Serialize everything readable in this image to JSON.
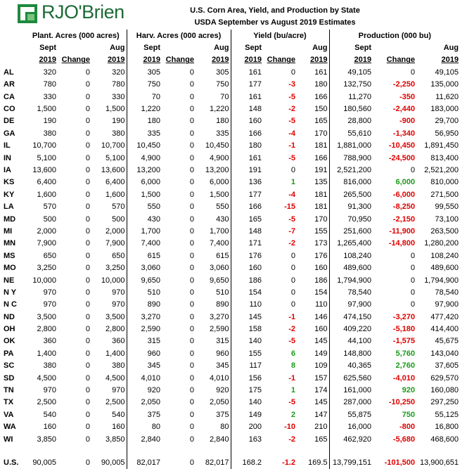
{
  "logo": {
    "text": "RJO'Brien"
  },
  "titles": {
    "line1": "U.S. Corn Area, Yield, and Production by State",
    "line2": "USDA September vs August 2019 Estimates"
  },
  "groups": {
    "plant": "Plant. Acres (000 acres)",
    "harv": "Harv. Acres (000 acres)",
    "yield": "Yield (bu/acre)",
    "prod": "Production (000 bu)"
  },
  "hdr": {
    "sept": "Sept",
    "aug": "Aug",
    "year": "2019",
    "change": "Change"
  },
  "colors": {
    "negative": "#e00000",
    "positive": "#1a9a1a",
    "logo": "#1d8a3c"
  },
  "rows": [
    [
      "AL",
      "320",
      "0",
      "320",
      "305",
      "0",
      "305",
      "161",
      "0",
      "161",
      "49,105",
      "0",
      "49,105"
    ],
    [
      "AR",
      "780",
      "0",
      "780",
      "750",
      "0",
      "750",
      "177",
      "-3",
      "180",
      "132,750",
      "-2,250",
      "135,000"
    ],
    [
      "CA",
      "330",
      "0",
      "330",
      "70",
      "0",
      "70",
      "161",
      "-5",
      "166",
      "11,270",
      "-350",
      "11,620"
    ],
    [
      "CO",
      "1,500",
      "0",
      "1,500",
      "1,220",
      "0",
      "1,220",
      "148",
      "-2",
      "150",
      "180,560",
      "-2,440",
      "183,000"
    ],
    [
      "DE",
      "190",
      "0",
      "190",
      "180",
      "0",
      "180",
      "160",
      "-5",
      "165",
      "28,800",
      "-900",
      "29,700"
    ],
    [
      "GA",
      "380",
      "0",
      "380",
      "335",
      "0",
      "335",
      "166",
      "-4",
      "170",
      "55,610",
      "-1,340",
      "56,950"
    ],
    [
      "IL",
      "10,700",
      "0",
      "10,700",
      "10,450",
      "0",
      "10,450",
      "180",
      "-1",
      "181",
      "1,881,000",
      "-10,450",
      "1,891,450"
    ],
    [
      "IN",
      "5,100",
      "0",
      "5,100",
      "4,900",
      "0",
      "4,900",
      "161",
      "-5",
      "166",
      "788,900",
      "-24,500",
      "813,400"
    ],
    [
      "IA",
      "13,600",
      "0",
      "13,600",
      "13,200",
      "0",
      "13,200",
      "191",
      "0",
      "191",
      "2,521,200",
      "0",
      "2,521,200"
    ],
    [
      "KS",
      "6,400",
      "0",
      "6,400",
      "6,000",
      "0",
      "6,000",
      "136",
      "1",
      "135",
      "816,000",
      "6,000",
      "810,000"
    ],
    [
      "KY",
      "1,600",
      "0",
      "1,600",
      "1,500",
      "0",
      "1,500",
      "177",
      "-4",
      "181",
      "265,500",
      "-6,000",
      "271,500"
    ],
    [
      "LA",
      "570",
      "0",
      "570",
      "550",
      "0",
      "550",
      "166",
      "-15",
      "181",
      "91,300",
      "-8,250",
      "99,550"
    ],
    [
      "MD",
      "500",
      "0",
      "500",
      "430",
      "0",
      "430",
      "165",
      "-5",
      "170",
      "70,950",
      "-2,150",
      "73,100"
    ],
    [
      "MI",
      "2,000",
      "0",
      "2,000",
      "1,700",
      "0",
      "1,700",
      "148",
      "-7",
      "155",
      "251,600",
      "-11,900",
      "263,500"
    ],
    [
      "MN",
      "7,900",
      "0",
      "7,900",
      "7,400",
      "0",
      "7,400",
      "171",
      "-2",
      "173",
      "1,265,400",
      "-14,800",
      "1,280,200"
    ],
    [
      "MS",
      "650",
      "0",
      "650",
      "615",
      "0",
      "615",
      "176",
      "0",
      "176",
      "108,240",
      "0",
      "108,240"
    ],
    [
      "MO",
      "3,250",
      "0",
      "3,250",
      "3,060",
      "0",
      "3,060",
      "160",
      "0",
      "160",
      "489,600",
      "0",
      "489,600"
    ],
    [
      "NE",
      "10,000",
      "0",
      "10,000",
      "9,650",
      "0",
      "9,650",
      "186",
      "0",
      "186",
      "1,794,900",
      "0",
      "1,794,900"
    ],
    [
      "N Y",
      "970",
      "0",
      "970",
      "510",
      "0",
      "510",
      "154",
      "0",
      "154",
      "78,540",
      "0",
      "78,540"
    ],
    [
      "N C",
      "970",
      "0",
      "970",
      "890",
      "0",
      "890",
      "110",
      "0",
      "110",
      "97,900",
      "0",
      "97,900"
    ],
    [
      "ND",
      "3,500",
      "0",
      "3,500",
      "3,270",
      "0",
      "3,270",
      "145",
      "-1",
      "146",
      "474,150",
      "-3,270",
      "477,420"
    ],
    [
      "OH",
      "2,800",
      "0",
      "2,800",
      "2,590",
      "0",
      "2,590",
      "158",
      "-2",
      "160",
      "409,220",
      "-5,180",
      "414,400"
    ],
    [
      "OK",
      "360",
      "0",
      "360",
      "315",
      "0",
      "315",
      "140",
      "-5",
      "145",
      "44,100",
      "-1,575",
      "45,675"
    ],
    [
      "PA",
      "1,400",
      "0",
      "1,400",
      "960",
      "0",
      "960",
      "155",
      "6",
      "149",
      "148,800",
      "5,760",
      "143,040"
    ],
    [
      "SC",
      "380",
      "0",
      "380",
      "345",
      "0",
      "345",
      "117",
      "8",
      "109",
      "40,365",
      "2,760",
      "37,605"
    ],
    [
      "SD",
      "4,500",
      "0",
      "4,500",
      "4,010",
      "0",
      "4,010",
      "156",
      "-1",
      "157",
      "625,560",
      "-4,010",
      "629,570"
    ],
    [
      "TN",
      "970",
      "0",
      "970",
      "920",
      "0",
      "920",
      "175",
      "1",
      "174",
      "161,000",
      "920",
      "160,080"
    ],
    [
      "TX",
      "2,500",
      "0",
      "2,500",
      "2,050",
      "0",
      "2,050",
      "140",
      "-5",
      "145",
      "287,000",
      "-10,250",
      "297,250"
    ],
    [
      "VA",
      "540",
      "0",
      "540",
      "375",
      "0",
      "375",
      "149",
      "2",
      "147",
      "55,875",
      "750",
      "55,125"
    ],
    [
      "WA",
      "160",
      "0",
      "160",
      "80",
      "0",
      "80",
      "200",
      "-10",
      "210",
      "16,000",
      "-800",
      "16,800"
    ],
    [
      "WI",
      "3,850",
      "0",
      "3,850",
      "2,840",
      "0",
      "2,840",
      "163",
      "-2",
      "165",
      "462,920",
      "-5,680",
      "468,600"
    ]
  ],
  "total": [
    "U.S.",
    "90,005",
    "0",
    "90,005",
    "82,017",
    "0",
    "82,017",
    "168.2",
    "-1.2",
    "169.5",
    "13,799,151",
    "-101,500",
    "13,900,651"
  ]
}
